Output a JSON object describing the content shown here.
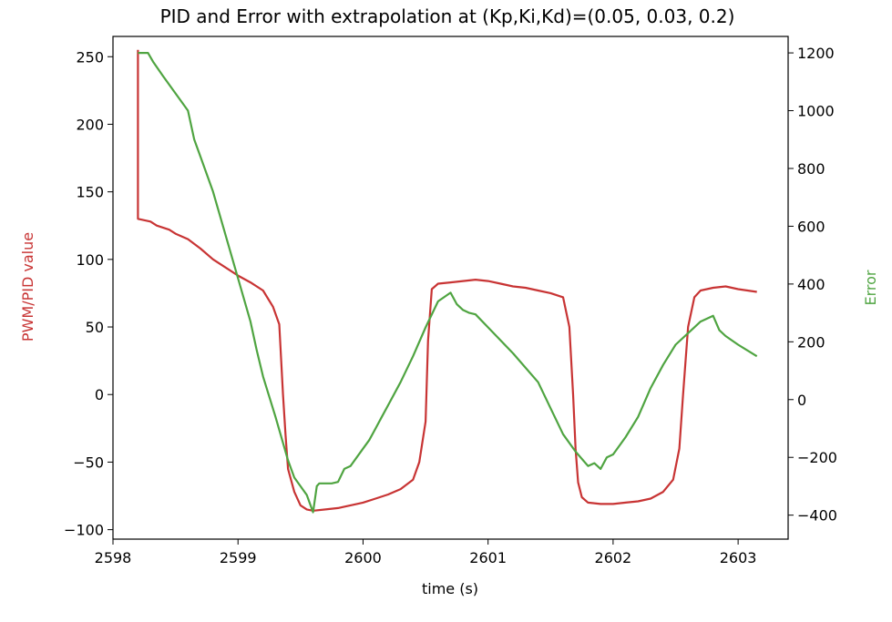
{
  "chart_data": {
    "type": "line",
    "title": "PID and Error with extrapolation at (Kp,Ki,Kd)=(0.05, 0.03, 0.2)",
    "xlabel": "time (s)",
    "ylabel": "PWM/PID value",
    "y2label": "Error",
    "xlim": [
      2598.0,
      2603.4
    ],
    "ylim": [
      -107,
      265
    ],
    "y2lim": [
      -483,
      1257
    ],
    "xticks": [
      "2598",
      "2599",
      "2600",
      "2601",
      "2602",
      "2603"
    ],
    "yticks": [
      "250",
      "200",
      "150",
      "100",
      "50",
      "0",
      "−50",
      "−100"
    ],
    "y2ticks": [
      "1200",
      "1000",
      "800",
      "600",
      "400",
      "200",
      "0",
      "−200",
      "−400"
    ],
    "grid": false,
    "legend": "none",
    "colors": {
      "pid": "#c83434",
      "error": "#4fa441",
      "axis": "#000000"
    },
    "series": [
      {
        "axis": "left",
        "x": [
          2598.2,
          2598.2,
          2598.2,
          2598.3,
          2598.35,
          2598.45,
          2598.5,
          2598.6,
          2598.7,
          2598.8,
          2598.9,
          2599.0,
          2599.1,
          2599.2,
          2599.28,
          2599.33,
          2599.36,
          2599.38,
          2599.4,
          2599.45,
          2599.5,
          2599.55,
          2599.6,
          2599.7,
          2599.8,
          2599.9,
          2600.0,
          2600.1,
          2600.2,
          2600.3,
          2600.4,
          2600.45,
          2600.5,
          2600.52,
          2600.55,
          2600.6,
          2600.7,
          2600.8,
          2600.9,
          2601.0,
          2601.1,
          2601.2,
          2601.3,
          2601.4,
          2601.5,
          2601.6,
          2601.65,
          2601.68,
          2601.7,
          2601.72,
          2601.75,
          2601.8,
          2601.9,
          2602.0,
          2602.1,
          2602.2,
          2602.3,
          2602.4,
          2602.48,
          2602.53,
          2602.56,
          2602.6,
          2602.65,
          2602.7,
          2602.8,
          2602.9,
          2603.0,
          2603.15
        ],
        "y": [
          255,
          255,
          130,
          128,
          125,
          122,
          119,
          115,
          108,
          100,
          94,
          88,
          83,
          77,
          65,
          52,
          0,
          -30,
          -55,
          -72,
          -82,
          -85,
          -86,
          -85,
          -84,
          -82,
          -80,
          -77,
          -74,
          -70,
          -63,
          -50,
          -20,
          40,
          78,
          82,
          83,
          84,
          85,
          84,
          82,
          80,
          79,
          77,
          75,
          72,
          50,
          0,
          -40,
          -65,
          -76,
          -80,
          -81,
          -81,
          -80,
          -79,
          -77,
          -72,
          -63,
          -40,
          0,
          50,
          72,
          77,
          79,
          80,
          78,
          76
        ]
      },
      {
        "axis": "right",
        "x": [
          2598.2,
          2598.28,
          2598.32,
          2598.4,
          2598.5,
          2598.6,
          2598.65,
          2598.7,
          2598.8,
          2598.9,
          2599.0,
          2599.1,
          2599.15,
          2599.2,
          2599.3,
          2599.4,
          2599.45,
          2599.55,
          2599.6,
          2599.63,
          2599.65,
          2599.75,
          2599.8,
          2599.85,
          2599.9,
          2600.0,
          2600.05,
          2600.1,
          2600.15,
          2600.2,
          2600.3,
          2600.4,
          2600.5,
          2600.6,
          2600.7,
          2600.75,
          2600.8,
          2600.85,
          2600.9,
          2601.0,
          2601.2,
          2601.4,
          2601.5,
          2601.6,
          2601.7,
          2601.8,
          2601.85,
          2601.9,
          2601.95,
          2602.0,
          2602.1,
          2602.2,
          2602.3,
          2602.4,
          2602.5,
          2602.6,
          2602.7,
          2602.8,
          2602.85,
          2602.9,
          2603.0,
          2603.15
        ],
        "y": [
          1200,
          1200,
          1170,
          1120,
          1060,
          1000,
          900,
          840,
          720,
          570,
          420,
          270,
          170,
          80,
          -60,
          -210,
          -270,
          -330,
          -390,
          -300,
          -290,
          -290,
          -285,
          -240,
          -230,
          -170,
          -140,
          -100,
          -60,
          -20,
          60,
          150,
          250,
          340,
          370,
          330,
          310,
          300,
          295,
          250,
          160,
          60,
          -30,
          -120,
          -180,
          -230,
          -220,
          -240,
          -200,
          -190,
          -130,
          -60,
          40,
          120,
          190,
          230,
          270,
          290,
          240,
          220,
          190,
          150
        ]
      }
    ]
  }
}
